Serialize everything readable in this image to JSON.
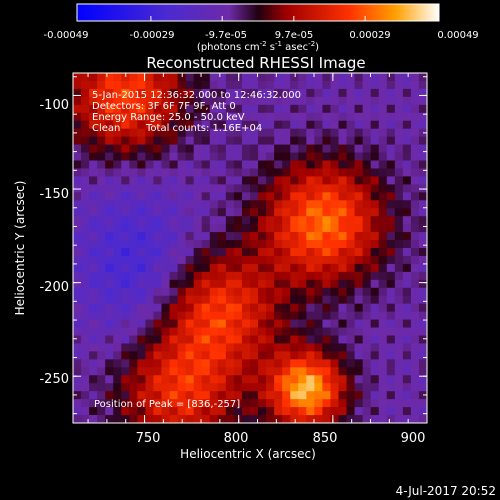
{
  "chart_data": {
    "type": "heatmap",
    "title": "Reconstructed RHESSI Image",
    "xlabel": "Heliocentric X (arcsec)",
    "ylabel": "Heliocentric Y (arcsec)",
    "xlim": [
      712,
      900
    ],
    "ylim": [
      -275,
      -88
    ],
    "x_ticks": [
      "750",
      "800",
      "850",
      "900"
    ],
    "y_ticks": [
      "-100",
      "-150",
      "-200",
      "-250"
    ],
    "colorbar": {
      "ticks": [
        "-0.00049",
        "-0.00029",
        "-9.7e-05",
        "9.7e-05",
        "0.00029",
        "0.00049"
      ],
      "units_prefix": "(photons cm",
      "units_exp1": "-2",
      "units_mid": " s",
      "units_exp2": "-1",
      "units_mid2": " asec",
      "units_exp3": "-2",
      "units_suffix": ")",
      "range": [
        -0.00049,
        0.00049
      ]
    },
    "annotations": {
      "time_range": "5-Jan-2015 12:36:32.000 to 12:46:32.000",
      "detectors": "Detectors: 3F 6F 7F 9F, Att 0",
      "energy": "Energy Range: 25.0 - 50.0 keV",
      "clean_label": "Clean",
      "total_counts": "Total counts: 1.16E+04",
      "peak": "Position of Peak = [836,-257]"
    },
    "sources": [
      {
        "x": 836,
        "y": -257,
        "peak": 0.00049
      },
      {
        "x": 845,
        "y": -168,
        "peak": 0.0004
      },
      {
        "x": 790,
        "y": -215,
        "peak": 0.00032
      },
      {
        "x": 740,
        "y": -100,
        "peak": 0.00034
      },
      {
        "x": 768,
        "y": -258,
        "peak": 0.0003
      }
    ]
  },
  "footer": {
    "datestamp": "4-Jul-2017 20:52"
  }
}
